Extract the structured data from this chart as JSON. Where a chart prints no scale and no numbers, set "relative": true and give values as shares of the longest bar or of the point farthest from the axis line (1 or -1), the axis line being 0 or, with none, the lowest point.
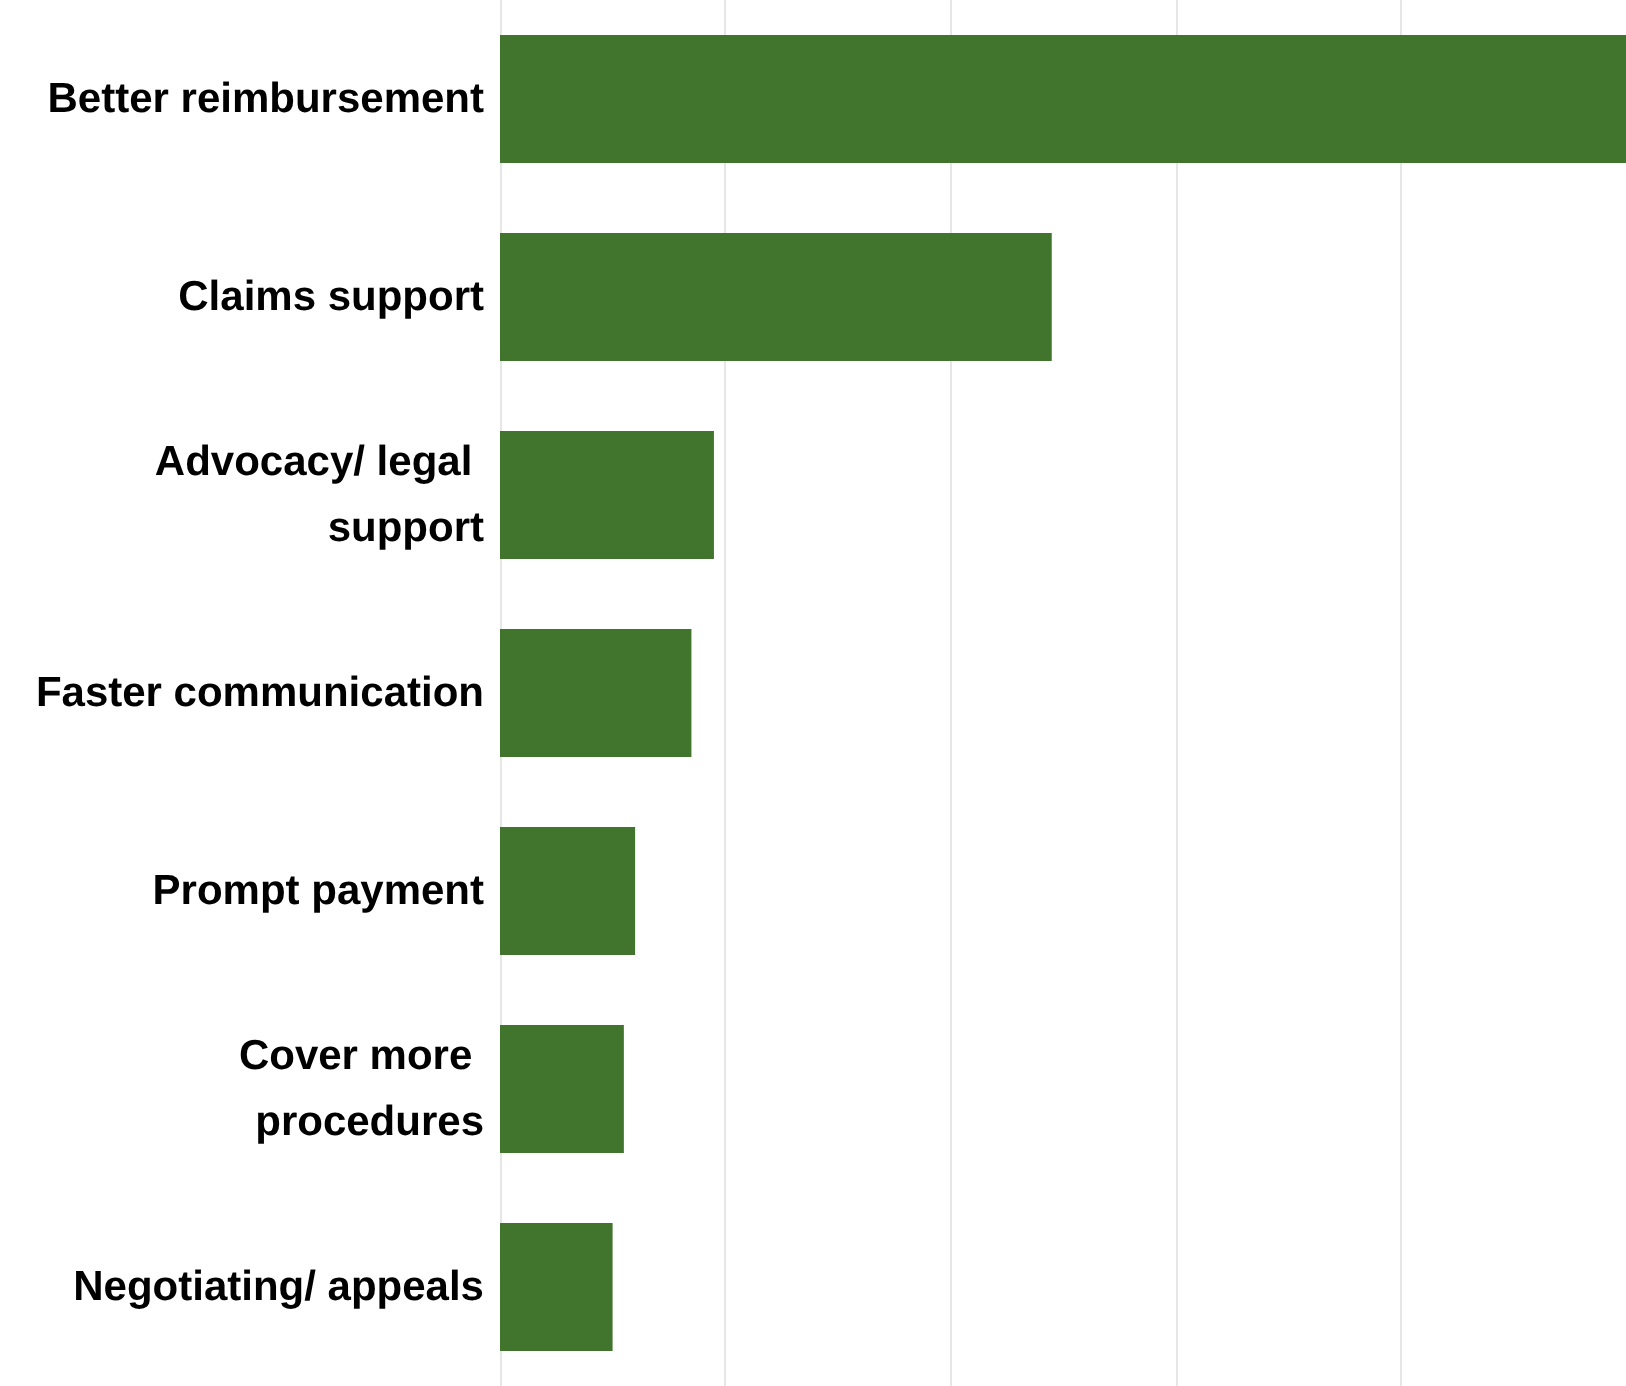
{
  "chart_data": {
    "type": "bar",
    "orientation": "horizontal",
    "relative": true,
    "grid": "x",
    "categories": [
      "Better reimbursement",
      "Claims support",
      "Advocacy/ legal support",
      "Faster communication",
      "Prompt payment",
      "Cover more procedures",
      "Negotiating/ appeals"
    ],
    "values": [
      1,
      0.49,
      0.19,
      0.17,
      0.12,
      0.11,
      0.1
    ],
    "color": "#41752e"
  }
}
